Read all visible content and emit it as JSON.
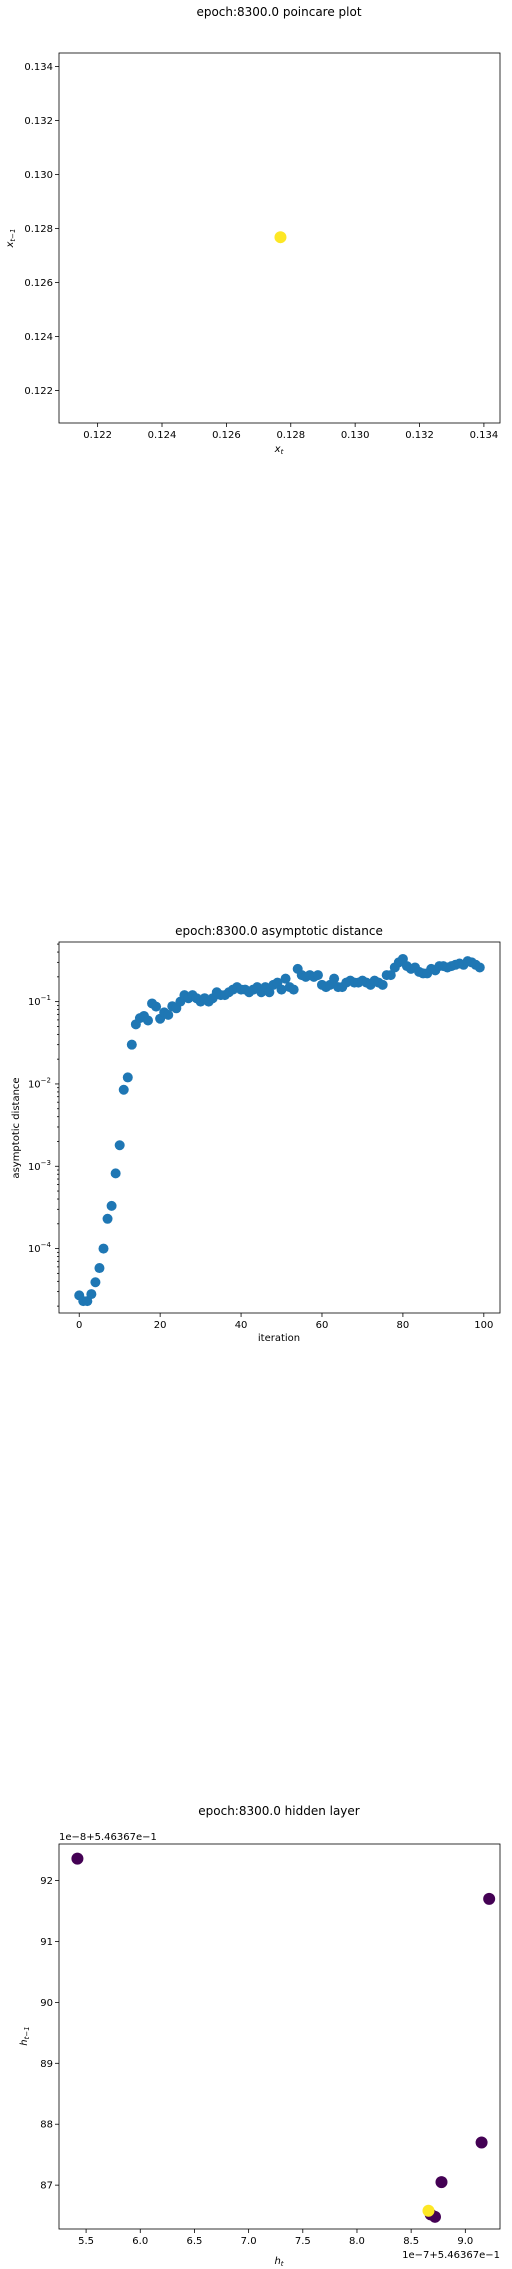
{
  "chart_data": [
    {
      "type": "scatter",
      "title": "epoch:8300.0 poincare plot",
      "xlabel": "x_t",
      "ylabel": "x_{t-1}",
      "xlim": [
        0.1208,
        0.1345
      ],
      "ylim": [
        0.1208,
        0.1345
      ],
      "xticks": [
        "0.122",
        "0.124",
        "0.126",
        "0.128",
        "0.130",
        "0.132",
        "0.134"
      ],
      "yticks": [
        "0.122",
        "0.124",
        "0.126",
        "0.128",
        "0.130",
        "0.132",
        "0.134"
      ],
      "x": [
        0.12768
      ],
      "y": [
        0.12768
      ],
      "color": "#fde725",
      "grid": false
    },
    {
      "type": "scatter",
      "title": "epoch:8300.0 asymptotic distance",
      "xlabel": "iteration",
      "ylabel": "asymptotic distance",
      "yscale": "log",
      "xlim": [
        -5,
        104
      ],
      "ylim": [
        1.65e-05,
        0.53
      ],
      "xticks": [
        "0",
        "20",
        "40",
        "60",
        "80",
        "100"
      ],
      "color": "#1f77b4",
      "grid": false,
      "x": [
        0,
        1,
        2,
        3,
        4,
        5,
        6,
        7,
        8,
        9,
        10,
        11,
        12,
        13,
        14,
        15,
        16,
        17,
        18,
        19,
        20,
        21,
        22,
        23,
        24,
        25,
        26,
        27,
        28,
        29,
        30,
        31,
        32,
        33,
        34,
        35,
        36,
        37,
        38,
        39,
        40,
        41,
        42,
        43,
        44,
        45,
        46,
        47,
        48,
        49,
        50,
        51,
        52,
        53,
        54,
        55,
        56,
        57,
        58,
        59,
        60,
        61,
        62,
        63,
        64,
        65,
        66,
        67,
        68,
        69,
        70,
        71,
        72,
        73,
        74,
        75,
        76,
        77,
        78,
        79,
        80,
        81,
        82,
        83,
        84,
        85,
        86,
        87,
        88,
        89,
        90,
        91,
        92,
        93,
        94,
        95,
        96,
        97,
        98,
        99
      ],
      "y": [
        2.7e-05,
        2.3e-05,
        2.3e-05,
        2.8e-05,
        3.9e-05,
        5.8e-05,
        0.0001,
        0.00023,
        0.00033,
        0.00082,
        0.0018,
        0.0085,
        0.012,
        0.03,
        0.053,
        0.063,
        0.067,
        0.059,
        0.095,
        0.087,
        0.062,
        0.074,
        0.069,
        0.088,
        0.083,
        0.1,
        0.12,
        0.11,
        0.12,
        0.11,
        0.1,
        0.11,
        0.1,
        0.11,
        0.13,
        0.12,
        0.12,
        0.13,
        0.14,
        0.15,
        0.14,
        0.14,
        0.13,
        0.14,
        0.15,
        0.13,
        0.15,
        0.13,
        0.16,
        0.17,
        0.14,
        0.19,
        0.15,
        0.14,
        0.25,
        0.21,
        0.2,
        0.21,
        0.2,
        0.21,
        0.16,
        0.15,
        0.16,
        0.19,
        0.15,
        0.15,
        0.17,
        0.18,
        0.17,
        0.17,
        0.18,
        0.17,
        0.16,
        0.18,
        0.17,
        0.16,
        0.21,
        0.21,
        0.26,
        0.3,
        0.33,
        0.27,
        0.25,
        0.26,
        0.23,
        0.22,
        0.22,
        0.25,
        0.24,
        0.27,
        0.27,
        0.26,
        0.27,
        0.28,
        0.29,
        0.28,
        0.31,
        0.3,
        0.28,
        0.26
      ]
    },
    {
      "type": "scatter",
      "title": "epoch:8300.0 hidden layer",
      "xlabel": "h_t",
      "ylabel": "h_{t-1}",
      "x_offset_text": "1e−7+5.46367e−1",
      "y_offset_text": "1e−8+5.46367e−1",
      "xlim": [
        5.25,
        9.32
      ],
      "ylim": [
        86.28,
        92.6
      ],
      "xticks": [
        "5.5",
        "6.0",
        "6.5",
        "7.0",
        "7.5",
        "8.0",
        "8.5",
        "9.0"
      ],
      "yticks": [
        "87",
        "88",
        "89",
        "90",
        "91",
        "92"
      ],
      "grid": false,
      "points": [
        {
          "x": 5.42,
          "y": 92.36,
          "color": "#440154"
        },
        {
          "x": 9.22,
          "y": 91.7,
          "color": "#440154"
        },
        {
          "x": 9.15,
          "y": 87.7,
          "color": "#440154"
        },
        {
          "x": 8.78,
          "y": 87.05,
          "color": "#440154"
        },
        {
          "x": 8.68,
          "y": 86.52,
          "color": "#440154"
        },
        {
          "x": 8.72,
          "y": 86.48,
          "color": "#440154"
        },
        {
          "x": 8.66,
          "y": 86.58,
          "color": "#fde725"
        }
      ]
    }
  ]
}
